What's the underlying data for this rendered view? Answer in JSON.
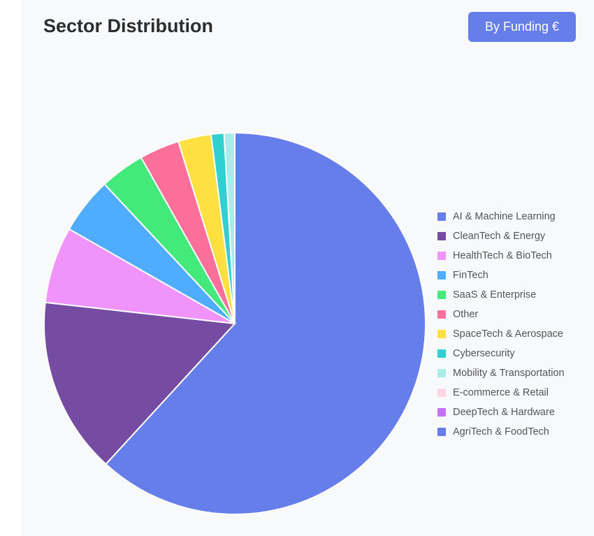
{
  "header": {
    "title": "Sector Distribution",
    "toggle_label": "By Funding €"
  },
  "chart_data": {
    "type": "pie",
    "title": "Sector Distribution",
    "legend_position": "right",
    "unit": "share of total funding (%)",
    "slices": [
      {
        "label": "AI & Machine Learning",
        "value": 62.0,
        "color": "#667eea"
      },
      {
        "label": "CleanTech & Energy",
        "value": 15.0,
        "color": "#764ba2"
      },
      {
        "label": "HealthTech & BioTech",
        "value": 6.5,
        "color": "#f093fb"
      },
      {
        "label": "FinTech",
        "value": 4.8,
        "color": "#4facfe"
      },
      {
        "label": "SaaS & Enterprise",
        "value": 3.8,
        "color": "#43e97b"
      },
      {
        "label": "Other",
        "value": 3.4,
        "color": "#fa709a"
      },
      {
        "label": "SpaceTech & Aerospace",
        "value": 2.8,
        "color": "#fee140"
      },
      {
        "label": "Cybersecurity",
        "value": 1.1,
        "color": "#30cfd0"
      },
      {
        "label": "Mobility & Transportation",
        "value": 0.9,
        "color": "#a8edea"
      },
      {
        "label": "E-commerce & Retail",
        "value": 0.0,
        "color": "#fed6e3"
      },
      {
        "label": "DeepTech & Hardware",
        "value": 0.0,
        "color": "#c471f5"
      },
      {
        "label": "AgriTech & FoodTech",
        "value": 0.0,
        "color": "#667eea"
      }
    ]
  }
}
